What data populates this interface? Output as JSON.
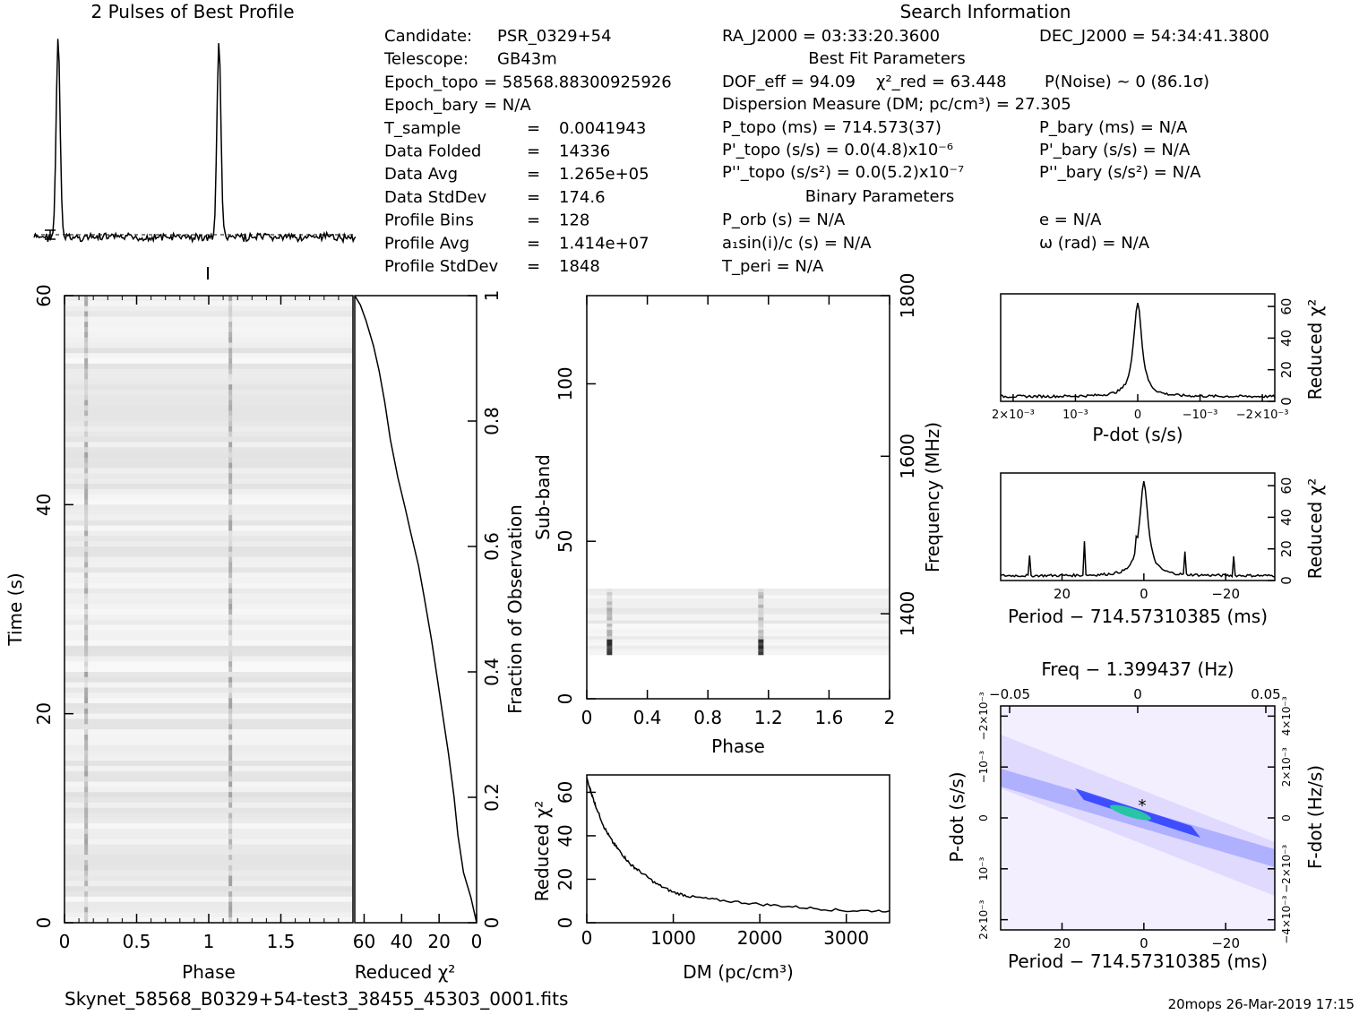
{
  "title_profile": "2 Pulses of Best Profile",
  "title_search": "Search Information",
  "footer_file": "Skynet_58568_B0329+54-test3_38455_45303_0001.fits",
  "footer_stamp": "20mops 26-Mar-2019 17:15",
  "info_left": [
    {
      "label": "Candidate:",
      "value": "PSR_0329+54"
    },
    {
      "label": "Telescope:",
      "value": "GB43m"
    },
    {
      "label": "Epoch_topo",
      "value": "= 58568.88300925926"
    },
    {
      "label": "Epoch_bary",
      "value": "= N/A"
    },
    {
      "label": "T_sample",
      "value": "0.0041943"
    },
    {
      "label": "Data Folded",
      "value": "14336"
    },
    {
      "label": "Data Avg",
      "value": "1.265e+05"
    },
    {
      "label": "Data StdDev",
      "value": "174.6"
    },
    {
      "label": "Profile Bins",
      "value": "128"
    },
    {
      "label": "Profile Avg",
      "value": "1.414e+07"
    },
    {
      "label": "Profile StdDev",
      "value": "1848"
    }
  ],
  "info_mid": {
    "ra": "RA_J2000 = 03:33:20.3600",
    "best_fit_header": "Best Fit Parameters",
    "dof": "DOF_eff = 94.09",
    "chi2": "χ²_red = 63.448",
    "dm_line": "Dispersion Measure (DM; pc/cm³) = 27.305",
    "p_topo": "P_topo (ms) = 714.573(37)",
    "pd_topo": "P'_topo (s/s) = 0.0(4.8)x10⁻⁶",
    "pdd_topo": "P''_topo (s/s²) = 0.0(5.2)x10⁻⁷",
    "binary_header": "Binary Parameters",
    "p_orb": "P_orb (s) = N/A",
    "asini": "a₁sin(i)/c (s) = N/A",
    "t_peri": "T_peri = N/A"
  },
  "info_right": {
    "dec": "DEC_J2000 = 54:34:41.3800",
    "p_noise": "P(Noise) ~ 0   (86.1σ)",
    "p_bary": "P_bary (ms) = N/A",
    "pd_bary": "P'_bary (s/s) = N/A",
    "pdd_bary": "P''_bary (s/s²) = N/A",
    "e": "e = N/A",
    "omega": "ω (rad) = N/A"
  },
  "chart_data": [
    {
      "id": "profile",
      "type": "line",
      "title": "2 Pulses of Best Profile",
      "x_range": [
        0,
        2
      ],
      "peaks_at_phase": [
        0.15,
        1.15
      ],
      "note_marker": "error bar at left baseline"
    },
    {
      "id": "time_phase",
      "type": "heatmap",
      "xlabel": "Phase",
      "ylabel": "Time (s)",
      "xlim": [
        0,
        2
      ],
      "ylim": [
        0,
        60
      ],
      "x_ticks": [
        "0",
        "0.5",
        "1",
        "1.5"
      ],
      "y_ticks": [
        "0",
        "20",
        "40",
        "60"
      ],
      "pulse_phases": [
        0.15,
        1.15
      ]
    },
    {
      "id": "chi2_vs_time",
      "type": "line",
      "xlabel": "Reduced χ²",
      "ylabel": "Fraction of Observation",
      "xlim": [
        65,
        0
      ],
      "ylim": [
        0,
        1
      ],
      "x_ticks": [
        "60",
        "40",
        "20",
        "0"
      ],
      "y_ticks": [
        "0",
        "0.2",
        "0.4",
        "0.6",
        "0.8",
        "1"
      ],
      "points": [
        [
          0,
          0
        ],
        [
          3,
          0.04
        ],
        [
          7,
          0.08
        ],
        [
          10,
          0.14
        ],
        [
          12,
          0.2
        ],
        [
          15,
          0.27
        ],
        [
          18,
          0.33
        ],
        [
          21,
          0.39
        ],
        [
          24,
          0.45
        ],
        [
          28,
          0.52
        ],
        [
          31,
          0.57
        ],
        [
          35,
          0.62
        ],
        [
          38,
          0.66
        ],
        [
          42,
          0.71
        ],
        [
          46,
          0.77
        ],
        [
          49,
          0.83
        ],
        [
          52,
          0.88
        ],
        [
          55,
          0.92
        ],
        [
          59,
          0.96
        ],
        [
          62,
          0.985
        ],
        [
          65,
          1
        ]
      ]
    },
    {
      "id": "subband_phase",
      "type": "heatmap",
      "xlabel": "Phase",
      "ylabel": "Sub-band",
      "y2label": "Frequency (MHz)",
      "xlim": [
        0,
        2
      ],
      "ylim": [
        0,
        128
      ],
      "x_ticks": [
        "0",
        "0.4",
        "0.8",
        "1.2",
        "1.6",
        "2"
      ],
      "y_ticks": [
        "0",
        "50",
        "100"
      ],
      "y2_ticks": [
        "1400",
        "1600",
        "1800"
      ],
      "signal_subbands": [
        14,
        35
      ],
      "pulse_phases": [
        0.15,
        1.15
      ]
    },
    {
      "id": "dm_curve",
      "type": "line",
      "xlabel": "DM (pc/cm³)",
      "ylabel": "Reduced χ²",
      "xlim": [
        0,
        3500
      ],
      "ylim": [
        0,
        68
      ],
      "x_ticks": [
        "0",
        "1000",
        "2000",
        "3000"
      ],
      "y_ticks": [
        "0",
        "20",
        "40",
        "60"
      ],
      "points": [
        [
          0,
          66
        ],
        [
          50,
          60
        ],
        [
          100,
          54
        ],
        [
          200,
          44
        ],
        [
          300,
          37
        ],
        [
          400,
          32
        ],
        [
          500,
          27
        ],
        [
          600,
          24
        ],
        [
          800,
          18
        ],
        [
          1000,
          14
        ],
        [
          1200,
          12
        ],
        [
          1500,
          10.5
        ],
        [
          2000,
          8.5
        ],
        [
          2500,
          7
        ],
        [
          3000,
          5.5
        ],
        [
          3500,
          5.5
        ]
      ]
    },
    {
      "id": "pdot_curve",
      "type": "line",
      "xlabel": "P-dot (s/s)",
      "ylabel": "Reduced χ²",
      "xlim": [
        0.0022,
        -0.0022
      ],
      "ylim": [
        0,
        68
      ],
      "x_ticks": [
        "2×10⁻³",
        "10⁻³",
        "0",
        "−10⁻³",
        "−2×10⁻³"
      ],
      "y_ticks": [
        "0",
        "20",
        "40",
        "60"
      ],
      "peak": [
        0,
        63.4
      ]
    },
    {
      "id": "period_curve",
      "type": "line",
      "xlabel": "Period − 714.57310385 (ms)",
      "ylabel": "Reduced χ²",
      "xlim": [
        35,
        -32
      ],
      "ylim": [
        0,
        68
      ],
      "x_ticks": [
        "20",
        "0",
        "−20"
      ],
      "y_ticks": [
        "0",
        "20",
        "40",
        "60"
      ],
      "peak": [
        0,
        63.4
      ]
    },
    {
      "id": "ppdot_plane",
      "type": "heatmap",
      "title": "Freq − 1.399437 (Hz)",
      "xlabel": "Period − 714.57310385 (ms)",
      "ylabel": "P-dot (s/s)",
      "y2label": "F-dot (Hz/s)",
      "xlim": [
        35,
        -32
      ],
      "ylim": [
        0.0022,
        -0.0022
      ],
      "x_ticks": [
        "20",
        "0",
        "−20"
      ],
      "top_ticks": [
        "−0.05",
        "0",
        "0.05"
      ],
      "y_ticks": [
        "−2×10⁻³",
        "−10⁻³",
        "0",
        "10⁻³",
        "2×10⁻³"
      ],
      "y2_ticks": [
        "4×10⁻³",
        "2×10⁻³",
        "0",
        "−2×10⁻³",
        "−4×10⁻³"
      ],
      "best_fit_marker": [
        0,
        0
      ]
    }
  ]
}
